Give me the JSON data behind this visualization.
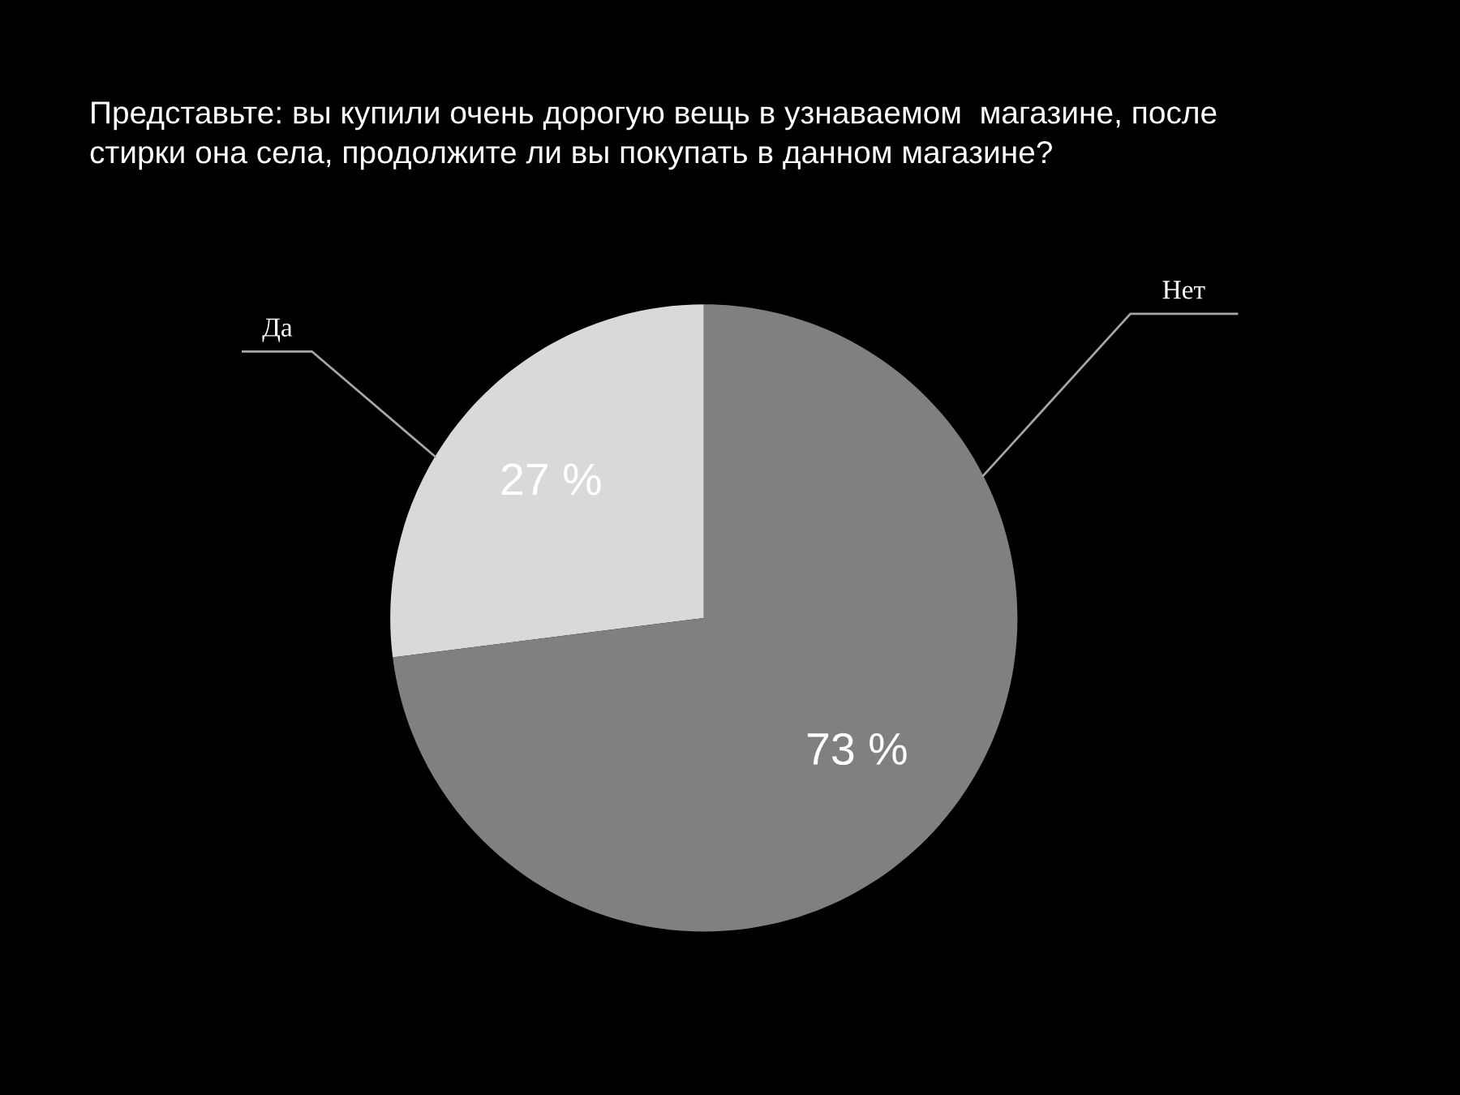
{
  "chart_data": {
    "type": "pie",
    "title": "Представьте: вы купили очень дорогую вещь в узнаваемом  магазине, после\nстирки она села, продолжите ли вы покупать в данном магазине?",
    "categories": [
      "Да",
      "Нет"
    ],
    "values": [
      27,
      73
    ],
    "colors": [
      "#d9d9d9",
      "#808080"
    ],
    "value_labels": [
      "27 %",
      "73 %"
    ],
    "legend": false
  }
}
